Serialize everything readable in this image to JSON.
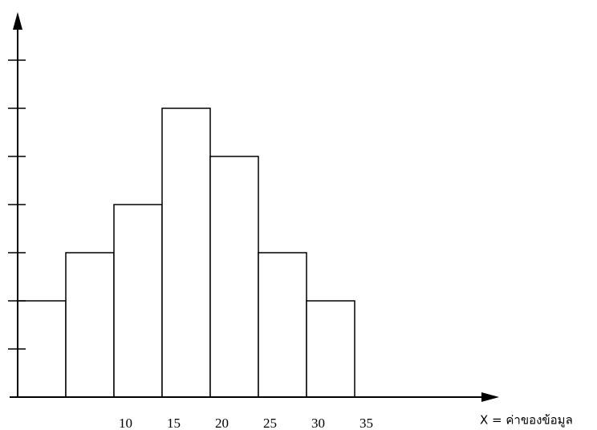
{
  "chart_data": {
    "type": "histogram",
    "x_label": "X = ค่าของข้อมูล",
    "bins": [
      0,
      5,
      10,
      15,
      20,
      25,
      30,
      35
    ],
    "values": [
      2,
      3,
      4,
      6,
      5,
      3,
      2
    ],
    "color": "#ffffff",
    "xlim": [
      0,
      50
    ],
    "xticks": [
      10,
      15,
      20,
      25,
      30,
      35
    ],
    "ylim": [
      0,
      8
    ],
    "yticks": [
      1,
      2,
      3,
      4,
      5,
      6,
      7
    ]
  }
}
